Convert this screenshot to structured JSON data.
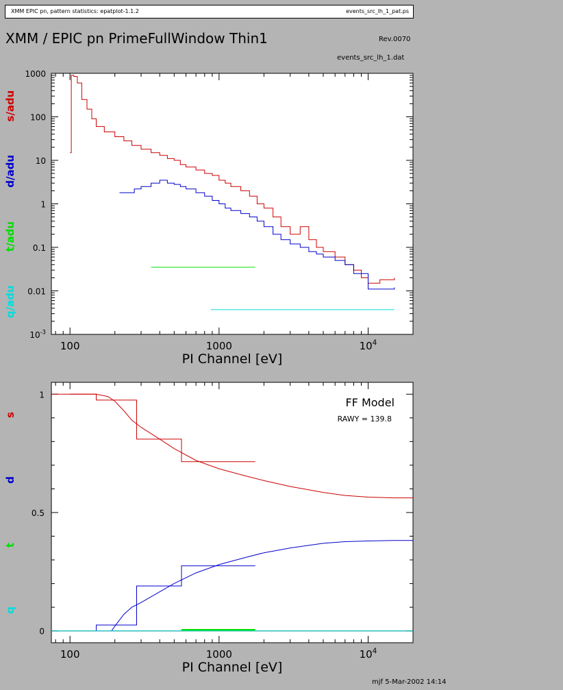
{
  "header": {
    "left_text": "XMM EPIC pn, pattern statistics: epatplot-1.1.2",
    "right_text": "events_src_lh_1_pat.ps"
  },
  "title": "XMM / EPIC pn PrimeFullWindow Thin1",
  "revision": "Rev.0070",
  "filename": "events_src_lh_1.dat",
  "footer": "mjf  5-Mar-2002 14:14",
  "colors": {
    "s": "#cc0000",
    "d": "#0000cc",
    "t": "#00dd00",
    "q": "#00dddd"
  },
  "chart_data": [
    {
      "type": "line",
      "xlabel": "PI Channel [eV]",
      "ylabels": [
        "s/adu",
        "d/adu",
        "t/adu",
        "q/adu"
      ],
      "xscale": "log",
      "yscale": "log",
      "xlim": [
        75,
        20000
      ],
      "ylim": [
        0.001,
        1000
      ],
      "x_ticks": [
        "100",
        "1000",
        "10^4"
      ],
      "y_ticks": [
        "1000",
        "100",
        "10",
        "1",
        "0.1",
        "0.01",
        "10^-3"
      ],
      "series": [
        {
          "name": "s/adu",
          "color": "#cc0000",
          "x": [
            100,
            102,
            106,
            112,
            120,
            130,
            140,
            150,
            170,
            200,
            230,
            260,
            300,
            350,
            400,
            450,
            500,
            550,
            600,
            700,
            800,
            900,
            1000,
            1100,
            1200,
            1400,
            1600,
            1800,
            2000,
            2300,
            2600,
            3000,
            3500,
            4000,
            4500,
            5000,
            6000,
            7000,
            8000,
            9000,
            10000,
            12000,
            15000
          ],
          "y": [
            15,
            900,
            850,
            600,
            250,
            150,
            90,
            60,
            45,
            35,
            28,
            22,
            18,
            15,
            13,
            11,
            10,
            8,
            7,
            6,
            5,
            4.5,
            3.5,
            3,
            2.5,
            2,
            1.5,
            1,
            0.8,
            0.5,
            0.3,
            0.2,
            0.3,
            0.15,
            0.1,
            0.08,
            0.06,
            0.04,
            0.03,
            0.02,
            0.015,
            0.018,
            0.02
          ]
        },
        {
          "name": "d/adu",
          "color": "#0000cc",
          "x": [
            215,
            240,
            270,
            300,
            350,
            400,
            450,
            500,
            550,
            600,
            700,
            800,
            900,
            1000,
            1100,
            1200,
            1400,
            1600,
            1800,
            2000,
            2300,
            2600,
            3000,
            3500,
            4000,
            4500,
            5000,
            6000,
            7000,
            8000,
            10000,
            13000,
            15000
          ],
          "y": [
            1.8,
            1.8,
            2.2,
            2.5,
            3,
            3.5,
            3,
            2.8,
            2.5,
            2.2,
            1.8,
            1.5,
            1.2,
            1,
            0.8,
            0.7,
            0.6,
            0.5,
            0.4,
            0.3,
            0.2,
            0.15,
            0.12,
            0.1,
            0.08,
            0.07,
            0.06,
            0.05,
            0.04,
            0.025,
            0.011,
            0.011,
            0.012
          ]
        },
        {
          "name": "t/adu",
          "color": "#00dd00",
          "x": [
            350,
            1750
          ],
          "y": [
            0.035,
            0.035
          ]
        },
        {
          "name": "q/adu",
          "color": "#00dddd",
          "x": [
            880,
            15000
          ],
          "y": [
            0.0037,
            0.0037
          ]
        }
      ]
    },
    {
      "type": "line",
      "xlabel": "PI Channel [eV]",
      "ylabels": [
        "s",
        "d",
        "t",
        "q"
      ],
      "xscale": "log",
      "xlim": [
        75,
        20000
      ],
      "ylim": [
        -0.05,
        1.05
      ],
      "x_ticks": [
        "100",
        "1000",
        "10^4"
      ],
      "y_ticks": [
        "1",
        "0.5",
        "0"
      ],
      "annotation": "FF Model",
      "annotation2": "RAWY = 139.8",
      "series": [
        {
          "name": "s-model",
          "color": "#cc0000",
          "x": [
            100,
            150,
            180,
            200,
            230,
            260,
            300,
            400,
            500,
            700,
            1000,
            1500,
            2000,
            3000,
            5000,
            7000,
            10000,
            15000,
            20000
          ],
          "y": [
            1.0,
            1.0,
            0.99,
            0.97,
            0.93,
            0.89,
            0.86,
            0.81,
            0.77,
            0.72,
            0.685,
            0.655,
            0.635,
            0.61,
            0.585,
            0.572,
            0.565,
            0.562,
            0.562
          ]
        },
        {
          "name": "s-data",
          "color": "#cc0000",
          "x": [
            75,
            150,
            150,
            280,
            280,
            560,
            560,
            1750
          ],
          "y": [
            1.0,
            1.0,
            0.975,
            0.975,
            0.81,
            0.81,
            0.715,
            0.715
          ]
        },
        {
          "name": "d-model",
          "color": "#0000cc",
          "x": [
            190,
            200,
            230,
            260,
            300,
            400,
            500,
            700,
            1000,
            1500,
            2000,
            3000,
            5000,
            7000,
            10000,
            15000,
            20000
          ],
          "y": [
            0.0,
            0.02,
            0.07,
            0.1,
            0.12,
            0.165,
            0.2,
            0.245,
            0.28,
            0.31,
            0.33,
            0.35,
            0.37,
            0.377,
            0.38,
            0.382,
            0.382
          ]
        },
        {
          "name": "d-data",
          "color": "#0000cc",
          "x": [
            150,
            150,
            280,
            280,
            560,
            560,
            1750
          ],
          "y": [
            0.0,
            0.025,
            0.025,
            0.19,
            0.19,
            0.275,
            0.275
          ]
        },
        {
          "name": "t-data",
          "color": "#00dd00",
          "x": [
            560,
            1750
          ],
          "y": [
            0.004,
            0.004
          ]
        },
        {
          "name": "q-model",
          "color": "#00dddd",
          "x": [
            75,
            20000
          ],
          "y": [
            0.0,
            0.0
          ]
        }
      ]
    }
  ]
}
